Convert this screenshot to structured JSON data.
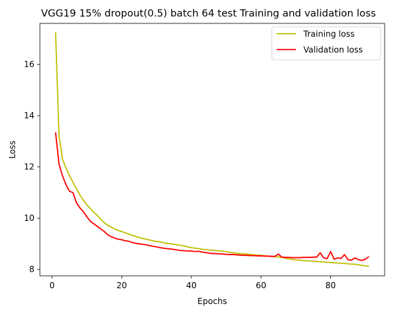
{
  "chart_data": {
    "type": "line",
    "title": "VGG19 15% dropout(0.5) batch 64 test Training and validation loss",
    "xlabel": "Epochs",
    "ylabel": "Loss",
    "xlim": [
      -3.5,
      95.5
    ],
    "ylim": [
      7.75,
      17.6
    ],
    "xticks": [
      0,
      20,
      40,
      60,
      80
    ],
    "yticks": [
      8,
      10,
      12,
      14,
      16
    ],
    "grid": false,
    "legend_position": "top-right",
    "x": [
      1,
      2,
      3,
      4,
      5,
      6,
      7,
      8,
      9,
      10,
      11,
      12,
      13,
      14,
      15,
      16,
      17,
      18,
      19,
      20,
      21,
      22,
      23,
      24,
      25,
      26,
      27,
      28,
      29,
      30,
      31,
      32,
      33,
      34,
      35,
      36,
      37,
      38,
      39,
      40,
      41,
      42,
      43,
      44,
      45,
      46,
      47,
      48,
      49,
      50,
      51,
      52,
      53,
      54,
      55,
      56,
      57,
      58,
      59,
      60,
      61,
      62,
      63,
      64,
      65,
      66,
      67,
      68,
      69,
      70,
      71,
      72,
      73,
      74,
      75,
      76,
      77,
      78,
      79,
      80,
      81,
      82,
      83,
      84,
      85,
      86,
      87,
      88,
      89,
      90,
      91
    ],
    "series": [
      {
        "name": "Training loss",
        "color": "#bfbf00",
        "values": [
          17.25,
          13.2,
          12.3,
          11.95,
          11.65,
          11.4,
          11.15,
          10.9,
          10.7,
          10.52,
          10.37,
          10.23,
          10.1,
          9.95,
          9.82,
          9.72,
          9.65,
          9.58,
          9.52,
          9.48,
          9.43,
          9.38,
          9.33,
          9.29,
          9.25,
          9.21,
          9.18,
          9.15,
          9.12,
          9.09,
          9.08,
          9.04,
          9.02,
          9.0,
          8.98,
          8.96,
          8.94,
          8.91,
          8.88,
          8.85,
          8.83,
          8.81,
          8.79,
          8.77,
          8.76,
          8.75,
          8.74,
          8.72,
          8.71,
          8.7,
          8.67,
          8.65,
          8.63,
          8.62,
          8.61,
          8.6,
          8.58,
          8.57,
          8.56,
          8.55,
          8.53,
          8.52,
          8.51,
          8.5,
          8.49,
          8.47,
          8.44,
          8.41,
          8.39,
          8.37,
          8.36,
          8.35,
          8.34,
          8.33,
          8.32,
          8.31,
          8.3,
          8.29,
          8.28,
          8.27,
          8.26,
          8.25,
          8.24,
          8.23,
          8.22,
          8.21,
          8.2,
          8.18,
          8.16,
          8.14,
          8.12
        ]
      },
      {
        "name": "Validation loss",
        "color": "#ff0000",
        "values": [
          13.35,
          12.1,
          11.65,
          11.3,
          11.05,
          11.0,
          10.6,
          10.4,
          10.25,
          10.05,
          9.88,
          9.78,
          9.68,
          9.58,
          9.48,
          9.35,
          9.28,
          9.22,
          9.18,
          9.16,
          9.12,
          9.1,
          9.05,
          9.02,
          9.0,
          8.98,
          8.96,
          8.93,
          8.9,
          8.88,
          8.85,
          8.83,
          8.81,
          8.8,
          8.78,
          8.76,
          8.74,
          8.73,
          8.72,
          8.72,
          8.7,
          8.71,
          8.68,
          8.66,
          8.64,
          8.62,
          8.62,
          8.61,
          8.6,
          8.59,
          8.58,
          8.58,
          8.57,
          8.56,
          8.55,
          8.55,
          8.54,
          8.54,
          8.53,
          8.53,
          8.52,
          8.52,
          8.51,
          8.51,
          8.6,
          8.48,
          8.47,
          8.47,
          8.46,
          8.46,
          8.46,
          8.47,
          8.47,
          8.47,
          8.48,
          8.48,
          8.65,
          8.45,
          8.42,
          8.7,
          8.4,
          8.45,
          8.43,
          8.58,
          8.38,
          8.36,
          8.45,
          8.38,
          8.35,
          8.4,
          8.5
        ]
      }
    ]
  }
}
